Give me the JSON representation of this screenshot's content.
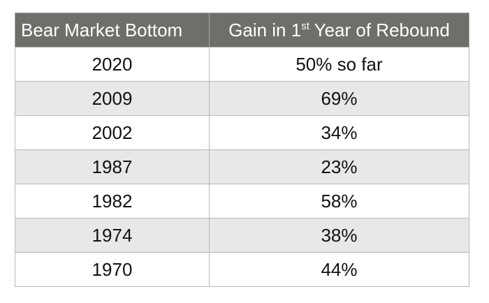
{
  "chart_data": {
    "type": "table",
    "columns": [
      "Bear Market Bottom",
      "Gain in 1st Year of Rebound"
    ],
    "rows": [
      {
        "year": "2020",
        "gain": "50% so far"
      },
      {
        "year": "2009",
        "gain": "69%"
      },
      {
        "year": "2002",
        "gain": "34%"
      },
      {
        "year": "1987",
        "gain": "23%"
      },
      {
        "year": "1982",
        "gain": "58%"
      },
      {
        "year": "1974",
        "gain": "38%"
      },
      {
        "year": "1970",
        "gain": "44%"
      }
    ],
    "header_parts": {
      "col2_before": "Gain in 1",
      "col2_sup": "st",
      "col2_after": " Year of Rebound"
    },
    "colors": {
      "header_bg": "#6d6f6a",
      "stripe_bg": "#e8e8e6",
      "border": "#b9b9b9"
    }
  }
}
